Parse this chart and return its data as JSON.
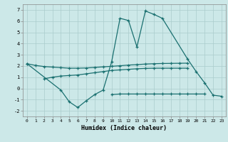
{
  "background_color": "#cce8e8",
  "grid_color": "#aacccc",
  "line_color": "#1a7070",
  "xlabel": "Humidex (Indice chaleur)",
  "ylim": [
    -2.5,
    7.5
  ],
  "xlim": [
    -0.5,
    23.5
  ],
  "main_x": [
    0,
    4,
    5,
    6,
    7,
    8,
    9,
    10,
    11,
    12,
    13,
    14,
    15,
    16,
    19,
    20,
    21,
    22,
    23
  ],
  "main_y": [
    2.2,
    -0.15,
    -1.2,
    -1.7,
    -1.1,
    -0.55,
    -0.15,
    2.35,
    6.25,
    6.05,
    3.7,
    6.9,
    6.6,
    6.25,
    2.6,
    1.5,
    0.5,
    -0.6,
    -0.7
  ],
  "upper_x": [
    0,
    1,
    2,
    3,
    4,
    5,
    6,
    7,
    8,
    9,
    10,
    11,
    12,
    13,
    14,
    15,
    16,
    17,
    18,
    19
  ],
  "upper_y": [
    2.2,
    2.05,
    1.95,
    1.9,
    1.85,
    1.8,
    1.8,
    1.82,
    1.87,
    1.92,
    1.97,
    2.02,
    2.08,
    2.12,
    2.17,
    2.2,
    2.22,
    2.23,
    2.24,
    2.25
  ],
  "lower_x": [
    2,
    3,
    4,
    5,
    6,
    7,
    8,
    9,
    10,
    11,
    12,
    13,
    14,
    15,
    16,
    17,
    18,
    19
  ],
  "lower_y": [
    0.85,
    1.0,
    1.1,
    1.15,
    1.2,
    1.3,
    1.4,
    1.5,
    1.6,
    1.65,
    1.7,
    1.75,
    1.78,
    1.8,
    1.8,
    1.8,
    1.8,
    1.8
  ],
  "bot_x": [
    10,
    11,
    12,
    13,
    14,
    15,
    16,
    17,
    18,
    19,
    20,
    21
  ],
  "bot_y": [
    -0.55,
    -0.5,
    -0.5,
    -0.5,
    -0.5,
    -0.5,
    -0.5,
    -0.5,
    -0.5,
    -0.5,
    -0.5,
    -0.5
  ]
}
